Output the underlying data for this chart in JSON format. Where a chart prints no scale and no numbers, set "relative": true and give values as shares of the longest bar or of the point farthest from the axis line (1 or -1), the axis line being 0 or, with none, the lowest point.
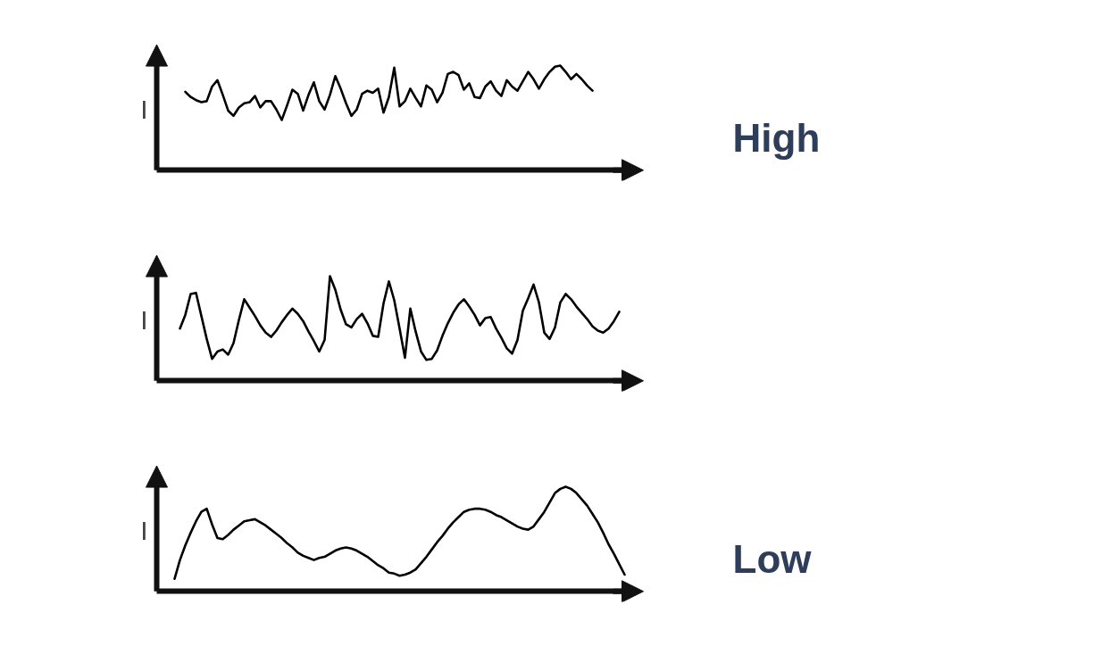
{
  "chart_data": [
    {
      "type": "line",
      "relative": true,
      "ylabel": "I",
      "annotations": [
        "High"
      ],
      "categories": [
        null,
        null,
        null,
        null,
        null,
        null,
        null,
        null,
        null,
        null,
        null,
        null,
        null,
        null,
        null,
        null,
        null,
        null,
        null,
        null,
        null,
        null,
        null,
        null,
        null,
        null,
        null,
        null,
        null,
        null,
        null,
        null,
        null,
        null,
        null,
        null,
        null,
        null,
        null,
        null,
        null,
        null,
        null,
        null,
        null,
        null,
        null,
        null,
        null,
        null,
        null,
        null,
        null,
        null,
        null,
        null,
        null,
        null,
        null,
        null,
        null,
        null,
        null,
        null,
        null,
        null,
        null,
        null,
        null,
        null,
        null,
        null,
        null,
        null,
        null,
        null,
        null,
        null,
        null,
        null,
        null,
        null,
        null,
        null,
        null
      ],
      "series": [
        {
          "color": "#000000",
          "values": [
            null,
            null,
            0.75,
            0.7,
            0.67,
            0.65,
            0.66,
            0.8,
            0.86,
            0.72,
            0.57,
            0.52,
            0.6,
            0.64,
            0.65,
            0.71,
            0.6,
            0.66,
            0.66,
            0.58,
            0.48,
            0.62,
            0.77,
            0.73,
            0.57,
            0.72,
            0.84,
            0.66,
            0.58,
            0.72,
            0.9,
            0.78,
            0.64,
            0.52,
            0.58,
            0.73,
            0.76,
            0.74,
            0.78,
            0.55,
            0.7,
            0.98,
            0.61,
            0.66,
            0.78,
            0.69,
            0.61,
            0.81,
            0.77,
            0.65,
            0.74,
            0.92,
            0.94,
            0.91,
            0.77,
            0.83,
            0.7,
            0.69,
            0.8,
            0.85,
            0.76,
            0.71,
            0.86,
            0.8,
            0.76,
            0.85,
            0.94,
            0.87,
            0.78,
            0.87,
            0.94,
            0.99,
            1,
            0.94,
            0.87,
            0.92,
            0.87,
            0.81,
            0.76,
            null,
            null,
            null,
            null,
            null,
            null
          ]
        }
      ]
    },
    {
      "type": "line",
      "relative": true,
      "ylabel": "I",
      "categories": [
        null,
        null,
        null,
        null,
        null,
        null,
        null,
        null,
        null,
        null,
        null,
        null,
        null,
        null,
        null,
        null,
        null,
        null,
        null,
        null,
        null,
        null,
        null,
        null,
        null,
        null,
        null,
        null,
        null,
        null,
        null,
        null,
        null,
        null,
        null,
        null,
        null,
        null,
        null,
        null,
        null,
        null,
        null,
        null,
        null,
        null,
        null,
        null,
        null,
        null,
        null,
        null,
        null,
        null,
        null,
        null,
        null,
        null,
        null,
        null,
        null,
        null,
        null,
        null,
        null,
        null,
        null,
        null,
        null,
        null,
        null,
        null,
        null,
        null,
        null,
        null,
        null,
        null,
        null,
        null,
        null,
        null,
        null,
        null,
        null
      ],
      "series": [
        {
          "color": "#000000",
          "values": [
            null,
            0.5,
            0.63,
            0.83,
            0.84,
            0.62,
            0.4,
            0.21,
            0.28,
            0.3,
            0.25,
            0.36,
            0.58,
            0.78,
            0.7,
            0.62,
            0.53,
            0.46,
            0.42,
            0.48,
            0.56,
            0.63,
            0.69,
            0.64,
            0.57,
            0.47,
            0.38,
            0.28,
            0.39,
            1,
            0.87,
            0.68,
            0.54,
            0.51,
            0.59,
            0.64,
            0.55,
            0.43,
            0.42,
            0.74,
            0.95,
            0.77,
            0.5,
            0.22,
            0.69,
            0.47,
            0.28,
            0.2,
            0.21,
            0.29,
            0.43,
            0.55,
            0.65,
            0.73,
            0.78,
            0.71,
            0.63,
            0.53,
            0.6,
            0.61,
            0.5,
            0.41,
            0.31,
            0.26,
            0.39,
            0.67,
            0.79,
            0.92,
            0.75,
            0.46,
            0.4,
            0.51,
            0.75,
            0.83,
            0.78,
            0.71,
            0.65,
            0.59,
            0.52,
            0.48,
            0.46,
            0.5,
            0.57,
            0.66,
            null
          ]
        }
      ]
    },
    {
      "type": "line",
      "relative": true,
      "ylabel": "I",
      "annotations": [
        "Low"
      ],
      "categories": [
        null,
        null,
        null,
        null,
        null,
        null,
        null,
        null,
        null,
        null,
        null,
        null,
        null,
        null,
        null,
        null,
        null,
        null,
        null,
        null,
        null,
        null,
        null,
        null,
        null,
        null,
        null,
        null,
        null,
        null,
        null,
        null,
        null,
        null,
        null,
        null,
        null,
        null,
        null,
        null,
        null,
        null,
        null,
        null,
        null,
        null,
        null,
        null,
        null,
        null,
        null,
        null,
        null,
        null,
        null,
        null,
        null,
        null,
        null,
        null,
        null,
        null,
        null,
        null,
        null,
        null,
        null,
        null,
        null,
        null,
        null,
        null,
        null,
        null,
        null,
        null,
        null,
        null,
        null,
        null,
        null,
        null,
        null,
        null,
        null
      ],
      "series": [
        {
          "color": "#000000",
          "values": [
            0.12,
            0.3,
            0.44,
            0.56,
            0.67,
            0.76,
            0.79,
            0.64,
            0.51,
            0.5,
            0.54,
            0.59,
            0.63,
            0.67,
            0.68,
            0.69,
            0.66,
            0.63,
            0.59,
            0.55,
            0.51,
            0.46,
            0.42,
            0.37,
            0.34,
            0.32,
            0.3,
            0.32,
            0.33,
            0.36,
            0.39,
            0.41,
            0.42,
            0.41,
            0.39,
            0.36,
            0.33,
            0.29,
            0.25,
            0.22,
            0.18,
            0.17,
            0.15,
            0.16,
            0.18,
            0.21,
            0.27,
            0.33,
            0.4,
            0.47,
            0.53,
            0.6,
            0.66,
            0.71,
            0.76,
            0.78,
            0.79,
            0.79,
            0.78,
            0.76,
            0.73,
            0.71,
            0.68,
            0.65,
            0.62,
            0.6,
            0.59,
            0.62,
            0.69,
            0.76,
            0.85,
            0.94,
            0.98,
            1,
            0.98,
            0.94,
            0.88,
            0.82,
            0.74,
            0.66,
            0.56,
            0.45,
            0.36,
            0.26,
            0.16
          ]
        }
      ]
    }
  ]
}
